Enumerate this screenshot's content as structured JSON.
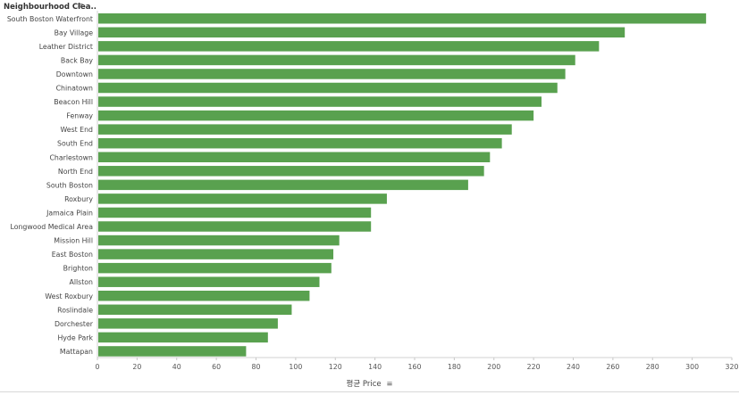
{
  "header": {
    "label": "Neighbourhood Clea..",
    "sort_icon": "sort-descending-icon"
  },
  "chart_data": {
    "type": "bar",
    "orientation": "horizontal",
    "categories": [
      "South Boston Waterfront",
      "Bay Village",
      "Leather District",
      "Back Bay",
      "Downtown",
      "Chinatown",
      "Beacon Hill",
      "Fenway",
      "West End",
      "South End",
      "Charlestown",
      "North End",
      "South Boston",
      "Roxbury",
      "Jamaica Plain",
      "Longwood Medical Area",
      "Mission Hill",
      "East Boston",
      "Brighton",
      "Allston",
      "West Roxbury",
      "Roslindale",
      "Dorchester",
      "Hyde Park",
      "Mattapan"
    ],
    "values": [
      307,
      266,
      253,
      241,
      236,
      232,
      224,
      220,
      209,
      204,
      198,
      195,
      187,
      146,
      138,
      138,
      122,
      119,
      118,
      112,
      107,
      98,
      91,
      86,
      75
    ],
    "xlabel": "평균 Price",
    "xlim": [
      0,
      320
    ],
    "xticks": [
      0,
      20,
      40,
      60,
      80,
      100,
      120,
      140,
      160,
      180,
      200,
      220,
      240,
      260,
      280,
      300,
      320
    ],
    "bar_color": "#59a14f",
    "grid": false
  }
}
